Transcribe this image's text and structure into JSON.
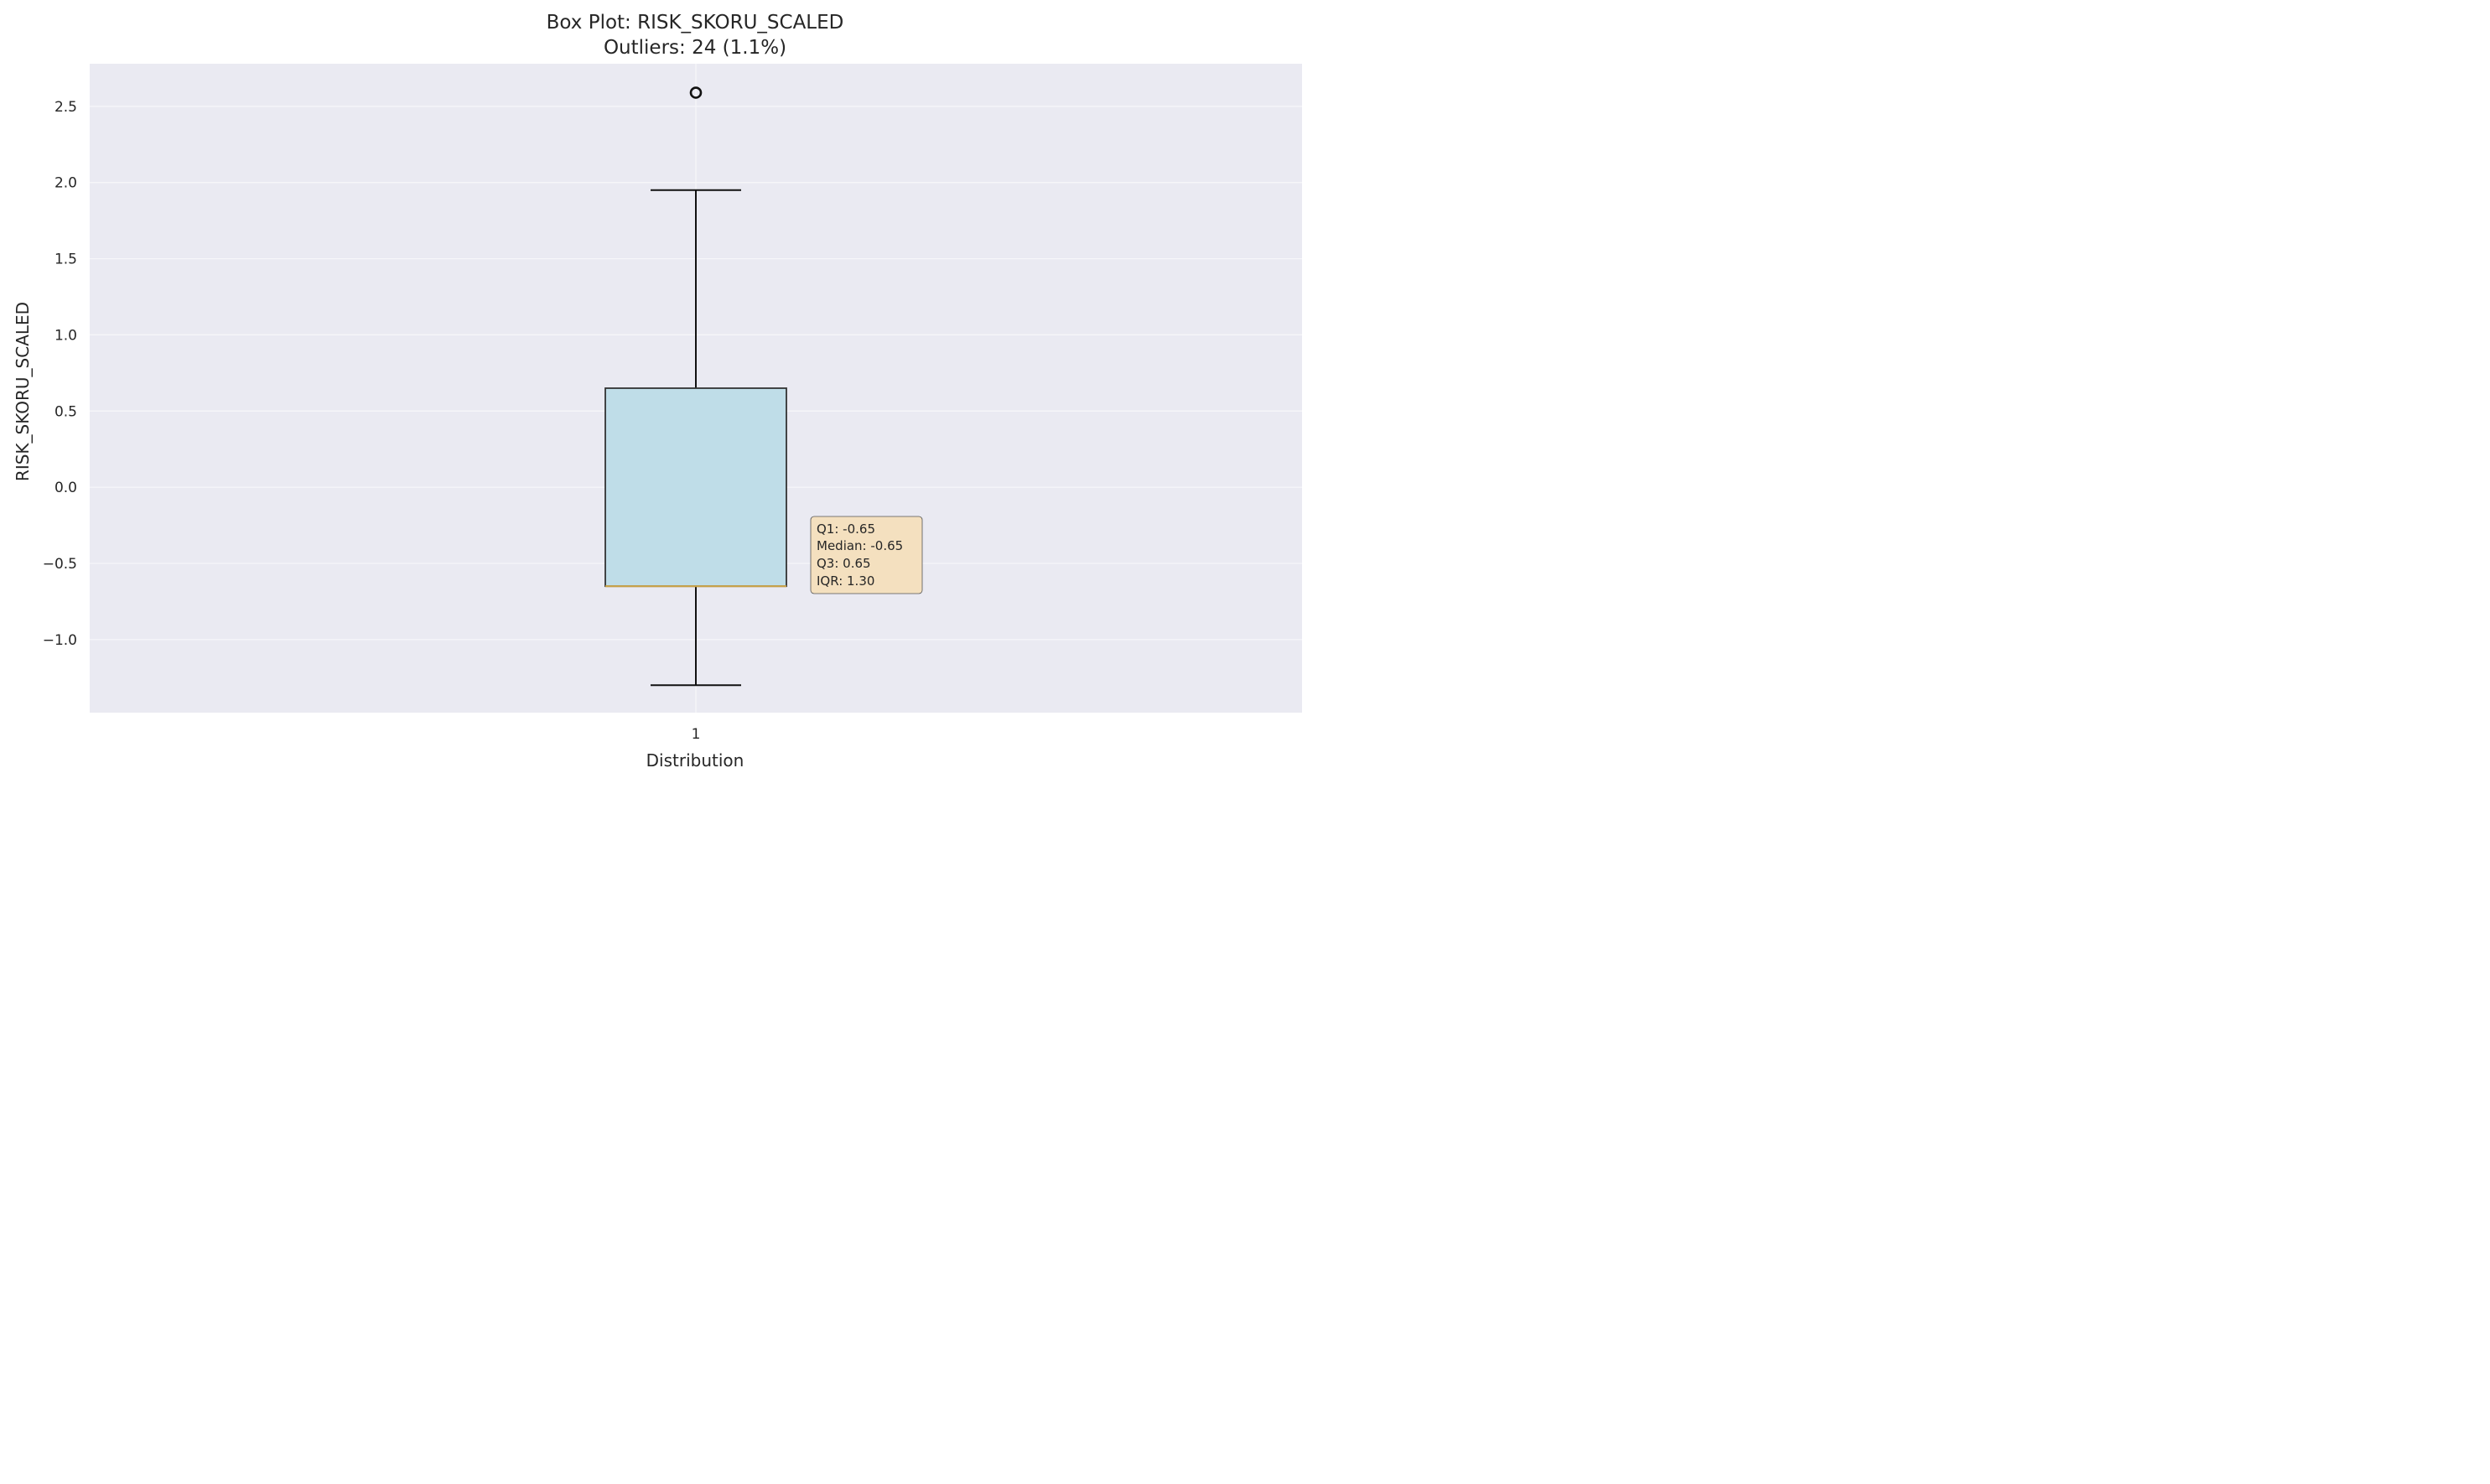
{
  "chart_data": {
    "type": "box",
    "title": "Box Plot: RISK_SKORU_SCALED",
    "subtitle": "Outliers: 24 (1.1%)",
    "xlabel": "Distribution",
    "ylabel": "RISK_SKORU_SCALED",
    "categories": [
      "1"
    ],
    "ylim": [
      -1.48,
      2.78
    ],
    "yticks": [
      {
        "value": -1.0,
        "label": "−1.0"
      },
      {
        "value": -0.5,
        "label": "−0.5"
      },
      {
        "value": 0.0,
        "label": "0.0"
      },
      {
        "value": 0.5,
        "label": "0.5"
      },
      {
        "value": 1.0,
        "label": "1.0"
      },
      {
        "value": 1.5,
        "label": "1.5"
      },
      {
        "value": 2.0,
        "label": "2.0"
      },
      {
        "value": 2.5,
        "label": "2.5"
      }
    ],
    "grid": true,
    "box": {
      "whisker_low": -1.3,
      "q1": -0.65,
      "median": -0.65,
      "q3": 0.65,
      "whisker_high": 1.95,
      "outliers": [
        2.59
      ]
    },
    "annotation": {
      "lines": [
        "Q1: -0.65",
        "Median: -0.65",
        "Q3: 0.65",
        "IQR: 1.30"
      ]
    },
    "colors": {
      "plot_bg": "#eaeaf2",
      "grid": "#f7f7fa",
      "box_fill": "#bfdde8",
      "box_edge": "#333333",
      "median": "#c9a246",
      "whisker": "#111111",
      "annotation_bg": "#f4e0bf"
    }
  }
}
